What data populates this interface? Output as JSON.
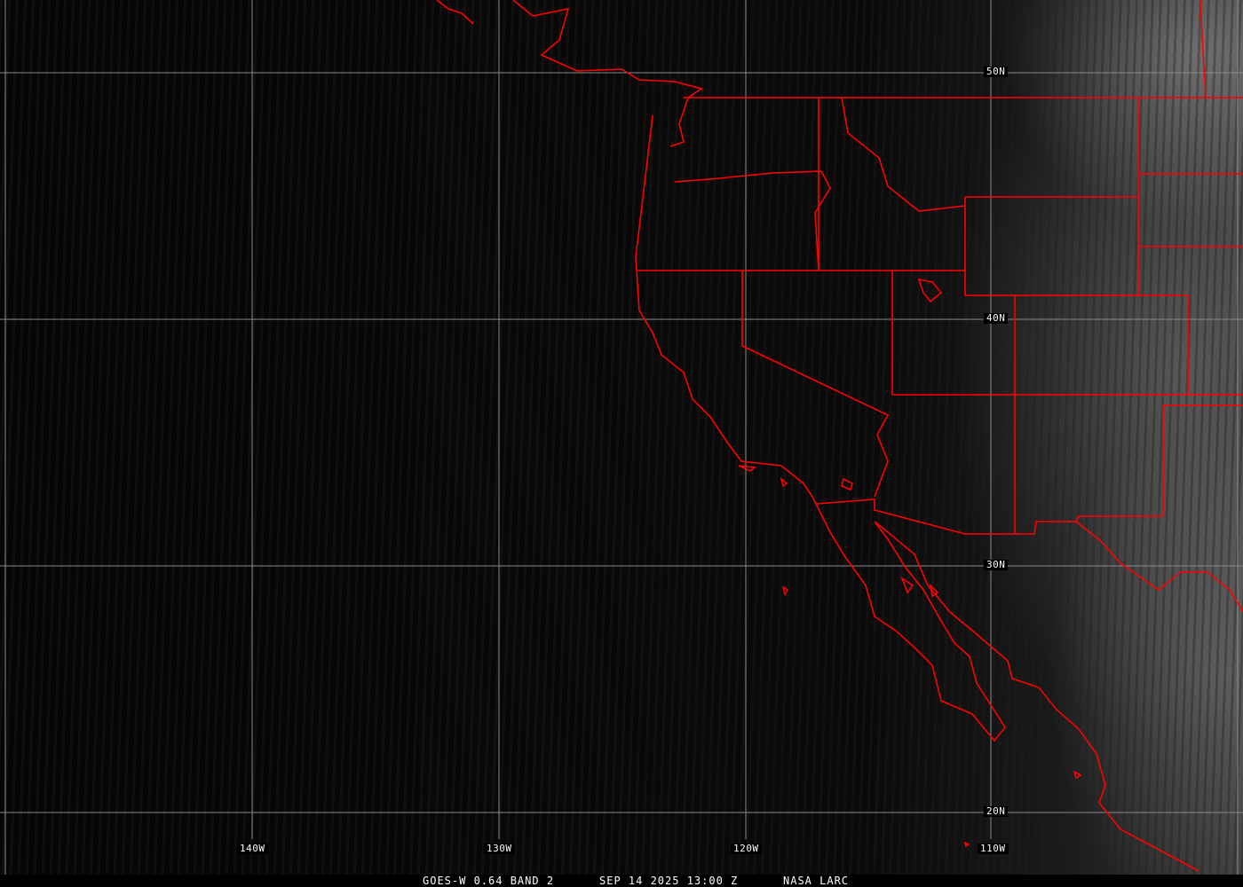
{
  "image": {
    "satellite": "GOES-W 0.64 BAND 2",
    "datetime": "SEP 14 2025 13:00 Z",
    "source": "NASA LARC"
  },
  "grid": {
    "latitude_labels": [
      "50N",
      "40N",
      "30N",
      "20N"
    ],
    "longitude_labels": [
      "140W",
      "130W",
      "120W",
      "110W"
    ],
    "grid_color": "#8a8a8a"
  },
  "overlay": {
    "boundary_color": "#ff0000",
    "boundaries": [
      "coastlines",
      "state-borders",
      "national-borders"
    ]
  }
}
